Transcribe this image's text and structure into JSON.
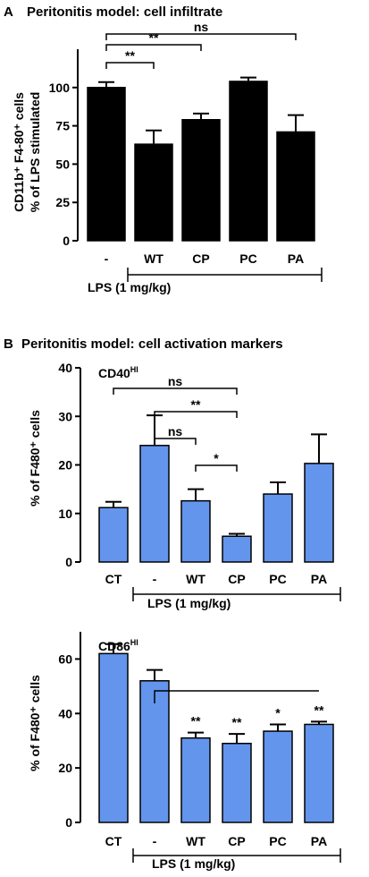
{
  "panel_a": {
    "letter": "A",
    "title": "Peritonitis model: cell infiltrate",
    "ylabel_line1": "CD11b⁺ F4-80⁺ cells",
    "ylabel_line2": "% of LPS stimulated",
    "group_label": "LPS  (1 mg/kg)"
  },
  "panel_b": {
    "letter": "B",
    "title": "Peritonitis model: cell activation markers",
    "ylabel": "% of F480⁺ cells",
    "cd40_label": "CD40",
    "cd40_sup": "HI",
    "cd86_label": "CD86",
    "cd86_sup": "HI",
    "group_label": "LPS (1 mg/kg)"
  },
  "colors": {
    "bar_a": "#000000",
    "bar_b": "#6495ED",
    "axis": "#000000"
  },
  "chart_data": [
    {
      "id": "chart-a",
      "type": "bar",
      "categories": [
        "-",
        "WT",
        "CP",
        "PC",
        "PA"
      ],
      "values": [
        100,
        63,
        79,
        104,
        71
      ],
      "errors": [
        3.5,
        9,
        4,
        2.5,
        11
      ],
      "ylim": [
        0,
        125
      ],
      "yticks": [
        0,
        25,
        50,
        75,
        100
      ],
      "annotations": [
        {
          "from": 0,
          "to": 1,
          "text": "**"
        },
        {
          "from": 0,
          "to": 2,
          "text": "**"
        },
        {
          "from": 0,
          "to": 4,
          "text": "ns"
        }
      ]
    },
    {
      "id": "chart-b1",
      "type": "bar",
      "categories": [
        "CT",
        "-",
        "WT",
        "CP",
        "PC",
        "PA"
      ],
      "values": [
        11.2,
        24,
        12.6,
        5.3,
        14,
        20.3
      ],
      "errors": [
        1.2,
        6.2,
        2.4,
        0.5,
        2.4,
        6
      ],
      "ylim": [
        0,
        40
      ],
      "yticks": [
        0,
        10,
        20,
        30,
        40
      ],
      "annotations": [
        {
          "from": 0,
          "to": 3,
          "text": "ns"
        },
        {
          "from": 1,
          "to": 3,
          "text": "**"
        },
        {
          "from": 1,
          "to": 2,
          "text": "ns"
        },
        {
          "from": 2,
          "to": 3,
          "text": "*"
        }
      ]
    },
    {
      "id": "chart-b2",
      "type": "bar",
      "categories": [
        "CT",
        "-",
        "WT",
        "CP",
        "PC",
        "PA"
      ],
      "values": [
        62,
        52,
        31,
        29,
        33.5,
        36
      ],
      "errors": [
        3.5,
        4,
        2,
        3.5,
        2.5,
        1
      ],
      "ylim": [
        0,
        70
      ],
      "yticks": [
        0,
        20,
        40,
        60
      ],
      "sig_labels": [
        "",
        "",
        "**",
        "**",
        "*",
        "**"
      ]
    }
  ]
}
